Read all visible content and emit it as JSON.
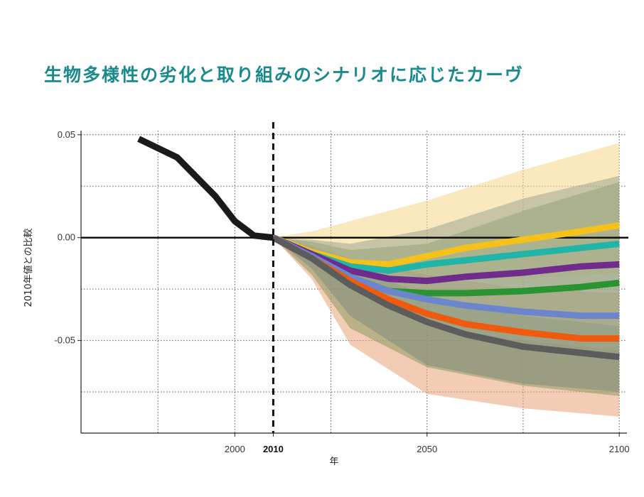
{
  "chart_data": {
    "type": "line",
    "title": "生物多様性の劣化と取り組みのシナリオに応じたカーヴ",
    "xlabel": "年",
    "ylabel": "2010年値との比較",
    "xlim": [
      1960,
      2102
    ],
    "ylim": [
      -0.095,
      0.052
    ],
    "x_ticks": [
      {
        "value": 2000,
        "label": "2000",
        "bold": false
      },
      {
        "value": 2010,
        "label": "2010",
        "bold": true
      },
      {
        "value": 2050,
        "label": "2050",
        "bold": false
      },
      {
        "value": 2100,
        "label": "2100",
        "bold": false
      }
    ],
    "y_ticks": [
      {
        "value": 0.05,
        "label": "0.05"
      },
      {
        "value": 0.0,
        "label": "0.00"
      },
      {
        "value": -0.05,
        "label": "-0.05"
      }
    ],
    "grid": true,
    "reference_line_y": 0.0,
    "reference_line_x": 2010,
    "historical": {
      "x": [
        1975,
        1985,
        1995,
        2000,
        2005,
        2010
      ],
      "y": [
        0.048,
        0.039,
        0.02,
        0.008,
        0.001,
        0.0
      ],
      "color": "#1a1a1a"
    },
    "bands": [
      {
        "color": "#f5d58a",
        "x": [
          2010,
          2020,
          2030,
          2050,
          2075,
          2100
        ],
        "upper": [
          0.0,
          0.003,
          0.008,
          0.018,
          0.033,
          0.046
        ],
        "lower": [
          0.0,
          -0.006,
          -0.012,
          -0.02,
          -0.02,
          -0.017
        ]
      },
      {
        "color": "#e9a27a",
        "x": [
          2010,
          2020,
          2030,
          2050,
          2075,
          2100
        ],
        "upper": [
          0.0,
          -0.004,
          -0.01,
          -0.018,
          -0.025,
          -0.027
        ],
        "lower": [
          0.0,
          -0.02,
          -0.052,
          -0.076,
          -0.083,
          -0.087
        ]
      },
      {
        "color": "#6f7aa3",
        "x": [
          2010,
          2020,
          2030,
          2050,
          2075,
          2100
        ],
        "upper": [
          0.0,
          -0.005,
          -0.014,
          -0.028,
          -0.038,
          -0.043
        ],
        "lower": [
          0.0,
          -0.015,
          -0.038,
          -0.062,
          -0.071,
          -0.075
        ]
      },
      {
        "color": "#8c9b5e",
        "x": [
          2010,
          2020,
          2030,
          2050,
          2075,
          2100
        ],
        "upper": [
          0.0,
          -0.002,
          -0.006,
          -0.003,
          0.013,
          0.027
        ],
        "lower": [
          0.0,
          -0.018,
          -0.044,
          -0.063,
          -0.072,
          -0.077
        ]
      },
      {
        "color": "#9da78f",
        "x": [
          2010,
          2020,
          2030,
          2050,
          2075,
          2100
        ],
        "upper": [
          0.0,
          -0.001,
          -0.003,
          0.004,
          0.019,
          0.03
        ],
        "lower": [
          0.0,
          -0.01,
          -0.025,
          -0.043,
          -0.05,
          -0.055
        ]
      }
    ],
    "series": [
      {
        "color": "#f4c21b",
        "x": [
          2010,
          2020,
          2030,
          2040,
          2050,
          2060,
          2075,
          2090,
          2100
        ],
        "y": [
          0.0,
          -0.007,
          -0.012,
          -0.013,
          -0.009,
          -0.005,
          -0.001,
          0.003,
          0.006
        ]
      },
      {
        "color": "#21b5a8",
        "x": [
          2010,
          2020,
          2030,
          2040,
          2050,
          2060,
          2075,
          2090,
          2100
        ],
        "y": [
          0.0,
          -0.008,
          -0.014,
          -0.016,
          -0.013,
          -0.011,
          -0.008,
          -0.005,
          -0.003
        ]
      },
      {
        "color": "#6f2c8c",
        "x": [
          2010,
          2020,
          2030,
          2040,
          2050,
          2060,
          2075,
          2090,
          2100
        ],
        "y": [
          0.0,
          -0.008,
          -0.016,
          -0.02,
          -0.021,
          -0.019,
          -0.017,
          -0.014,
          -0.013
        ]
      },
      {
        "color": "#2a9433",
        "x": [
          2010,
          2020,
          2030,
          2040,
          2050,
          2060,
          2075,
          2090,
          2100
        ],
        "y": [
          0.0,
          -0.009,
          -0.019,
          -0.026,
          -0.027,
          -0.027,
          -0.026,
          -0.024,
          -0.022
        ]
      },
      {
        "color": "#6b86cc",
        "x": [
          2010,
          2020,
          2030,
          2040,
          2050,
          2060,
          2075,
          2090,
          2100
        ],
        "y": [
          0.0,
          -0.009,
          -0.019,
          -0.026,
          -0.03,
          -0.033,
          -0.036,
          -0.038,
          -0.038
        ]
      },
      {
        "color": "#f05a0e",
        "x": [
          2010,
          2020,
          2030,
          2040,
          2050,
          2060,
          2075,
          2090,
          2100
        ],
        "y": [
          0.0,
          -0.01,
          -0.021,
          -0.03,
          -0.037,
          -0.042,
          -0.046,
          -0.049,
          -0.049
        ]
      },
      {
        "color": "#5c5c5c",
        "x": [
          2010,
          2020,
          2030,
          2040,
          2050,
          2060,
          2075,
          2090,
          2100
        ],
        "y": [
          0.0,
          -0.01,
          -0.023,
          -0.033,
          -0.041,
          -0.047,
          -0.053,
          -0.056,
          -0.058
        ]
      }
    ]
  }
}
